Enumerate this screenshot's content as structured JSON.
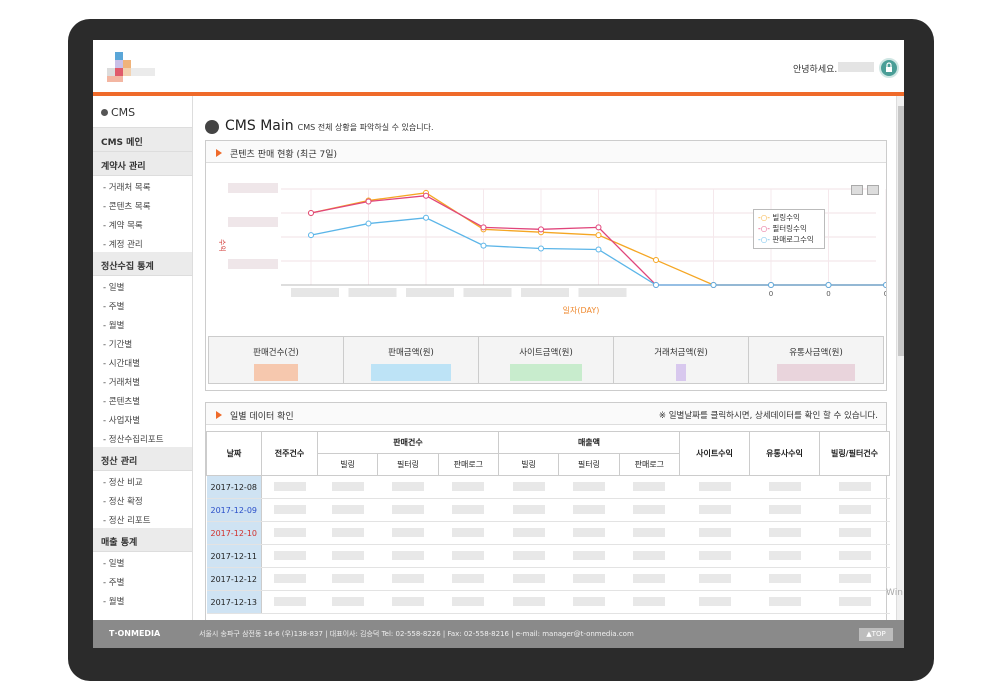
{
  "header": {
    "greeting": "안녕하세요.",
    "lock_icon": "lock-icon"
  },
  "sidebar": {
    "title": "CMS",
    "sections": [
      {
        "label": "CMS 메인",
        "items": []
      },
      {
        "label": "계약사 관리",
        "items": [
          "- 거래처 목록",
          "- 콘텐츠 목록",
          "- 계약 목록",
          "- 계정 관리"
        ]
      },
      {
        "label": "정산수집 통계",
        "items": [
          "- 일별",
          "- 주별",
          "- 월별",
          "- 기간별",
          "- 시간대별",
          "- 거래처별",
          "- 콘텐츠별",
          "- 사업자별",
          "- 정산수집리포트"
        ]
      },
      {
        "label": "정산 관리",
        "items": [
          "- 정산 비교",
          "- 정산 확정",
          "- 정산 리포트"
        ]
      },
      {
        "label": "매출 통계",
        "items": [
          "- 일별",
          "- 주별",
          "- 월별"
        ]
      }
    ]
  },
  "main": {
    "title": "CMS Main",
    "subtitle": "CMS 전체 상황을 파악하실 수 있습니다.",
    "panel1_title": "콘텐츠 판매 현황 (최근 7일)",
    "panel2_title": "일별 데이터 확인",
    "panel2_note": "※ 일별날짜를 클릭하시면, 상세데이터를 확인 할 수 있습니다.",
    "stats": [
      "판매건수(건)",
      "판매금액(원)",
      "사이트금액(원)",
      "거래처금액(원)",
      "유통사금액(원)"
    ],
    "stat_colors": [
      "#f6c8ae",
      "#bde3f6",
      "#c8eccd",
      "#d8c8ee",
      "#e9d4dc"
    ]
  },
  "chart_data": {
    "type": "line",
    "xlabel": "일자(DAY)",
    "ylabel": "수익",
    "x_zero_labels": [
      "0",
      "0",
      "0"
    ],
    "series": [
      {
        "name": "빌링수익",
        "color": "#f5a623",
        "values": [
          0.75,
          0.88,
          0.96,
          0.58,
          0.55,
          0.52,
          0.26,
          0.0,
          0.0,
          0.0,
          0.0
        ]
      },
      {
        "name": "필터링수익",
        "color": "#e0457b",
        "values": [
          0.75,
          0.87,
          0.93,
          0.6,
          0.58,
          0.6,
          0.0,
          0.0,
          0.0,
          0.0,
          0.0
        ]
      },
      {
        "name": "판매로그수익",
        "color": "#5bb5e8",
        "values": [
          0.52,
          0.64,
          0.7,
          0.41,
          0.38,
          0.37,
          0.0,
          0.0,
          0.0,
          0.0,
          0.0
        ]
      }
    ]
  },
  "table": {
    "col_headers": [
      "날짜",
      "전주건수",
      "판매건수",
      "매출액",
      "사이트수익",
      "유통사수익",
      "빌링/필터건수"
    ],
    "sub_headers": [
      "빌링",
      "필터링",
      "판매로그",
      "빌링",
      "필터링",
      "판매로그"
    ],
    "rows": [
      {
        "date": "2017-12-08",
        "style": "normal"
      },
      {
        "date": "2017-12-09",
        "style": "blue"
      },
      {
        "date": "2017-12-10",
        "style": "red"
      },
      {
        "date": "2017-12-11",
        "style": "normal"
      },
      {
        "date": "2017-12-12",
        "style": "normal"
      },
      {
        "date": "2017-12-13",
        "style": "normal"
      }
    ]
  },
  "footer": {
    "brand": "T·ONMEDIA",
    "address": "서울시 송파구 삼전동 16-6 (우)138-837  |  대표이사: 김승덕 Tel: 02-558-8226  |  Fax: 02-558-8216 | e-mail: manager@t-onmedia.com",
    "top_label": "▲TOP"
  }
}
